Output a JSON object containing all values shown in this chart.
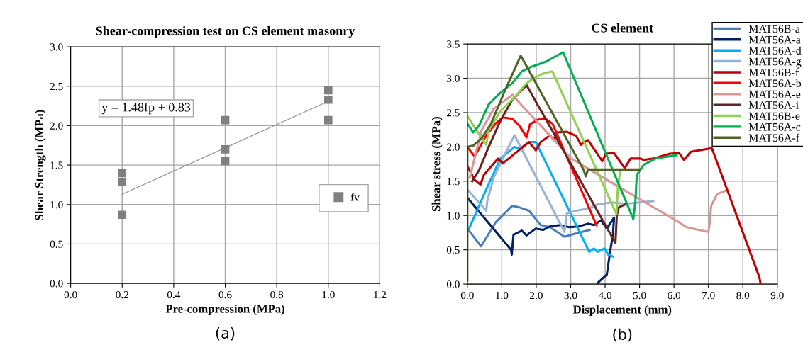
{
  "chart_data": [
    {
      "type": "scatter",
      "title": "Shear-compression test on CS element masonry",
      "xlabel": "Pre-compression (MPa)",
      "ylabel": "Shear Strength (MPa)",
      "xlim": [
        0,
        1.2
      ],
      "xticks": [
        {
          "value": 0,
          "label": "0.0"
        },
        {
          "value": 0.2,
          "label": "0.2"
        },
        {
          "value": 0.4,
          "label": "0.4"
        },
        {
          "value": 0.6,
          "label": "0.6"
        },
        {
          "value": 0.8,
          "label": "0.8"
        },
        {
          "value": 1.0,
          "label": "1.0"
        },
        {
          "value": 1.2,
          "label": "1.2"
        }
      ],
      "ylim": [
        0,
        3
      ],
      "yticks": [
        {
          "value": 0,
          "label": "0.0"
        },
        {
          "value": 0.5,
          "label": "0.5"
        },
        {
          "value": 1.0,
          "label": "1.0"
        },
        {
          "value": 1.5,
          "label": "1.5"
        },
        {
          "value": 2.0,
          "label": "2.0"
        },
        {
          "value": 2.5,
          "label": "2.5"
        },
        {
          "value": 3.0,
          "label": "3.0"
        }
      ],
      "grid": true,
      "legend": "right",
      "annotations": [
        "y = 1.48fp + 0.83",
        "(a)"
      ],
      "series": [
        {
          "name": "fv",
          "color": "#808080",
          "marker": "square",
          "x": [
            0.2,
            0.2,
            0.2,
            0.6,
            0.6,
            0.6,
            1.0,
            1.0,
            1.0
          ],
          "values": [
            1.4,
            1.29,
            0.87,
            2.07,
            1.7,
            1.55,
            2.45,
            2.33,
            2.07
          ]
        },
        {
          "type": "line",
          "color": "#8c8c8c",
          "marker": "none",
          "x": [
            0.2,
            1.0
          ],
          "values": [
            1.13,
            2.31
          ]
        }
      ]
    },
    {
      "type": "line",
      "title": "CS element",
      "xlabel": "Displacement (mm)",
      "ylabel": "Shear stress (MPa)",
      "xlim": [
        0,
        9
      ],
      "xticks": [
        {
          "value": 0,
          "label": "0.0"
        },
        {
          "value": 1,
          "label": "1.0"
        },
        {
          "value": 2,
          "label": "2.0"
        },
        {
          "value": 3,
          "label": "3.0"
        },
        {
          "value": 4,
          "label": "4.0"
        },
        {
          "value": 5,
          "label": "5.0"
        },
        {
          "value": 6,
          "label": "6.0"
        },
        {
          "value": 7,
          "label": "7.0"
        },
        {
          "value": 8,
          "label": "8.0"
        },
        {
          "value": 9,
          "label": "9.0"
        }
      ],
      "ylim": [
        0,
        3.5
      ],
      "yticks": [
        {
          "value": 0,
          "label": "0.0"
        },
        {
          "value": 0.5,
          "label": "0.5"
        },
        {
          "value": 1.0,
          "label": "1.0"
        },
        {
          "value": 1.5,
          "label": "1.5"
        },
        {
          "value": 2.0,
          "label": "2.0"
        },
        {
          "value": 2.5,
          "label": "2.5"
        },
        {
          "value": 3.0,
          "label": "3.0"
        },
        {
          "value": 3.5,
          "label": "3.5"
        }
      ],
      "grid": true,
      "legend": "top right",
      "annotations": [
        "(b)"
      ],
      "series": [
        {
          "name": "MAT56B-a",
          "color": "#4a7ebb",
          "x": [
            0,
            0.4,
            0.82,
            1.3,
            1.5,
            1.79,
            2.13,
            2.4,
            2.82,
            3.16,
            3.55
          ],
          "values": [
            0.81,
            0.55,
            0.9,
            1.14,
            1.12,
            1.07,
            0.86,
            0.83,
            0.69,
            0.74,
            0.79
          ]
        },
        {
          "name": "MAT56A-a",
          "color": "#002060",
          "x": [
            0,
            1.27,
            1.29,
            1.34,
            1.58,
            1.72,
            1.99,
            2.2,
            2.4,
            2.68,
            2.96,
            3.23,
            3.5,
            3.68,
            3.88,
            4.05,
            4.26,
            4.23,
            4.14,
            4.05,
            3.79
          ],
          "values": [
            1.26,
            0.5,
            0.43,
            0.72,
            0.78,
            0.71,
            0.81,
            0.79,
            0.84,
            0.86,
            0.83,
            0.84,
            0.88,
            0.86,
            0.93,
            0.81,
            0.97,
            0.74,
            0.45,
            0.14,
            0.02
          ]
        },
        {
          "name": "MAT56A-d",
          "color": "#00b0f0",
          "x": [
            0.05,
            0.55,
            0.96,
            1.37,
            1.51,
            1.79,
            1.99,
            3.54,
            3.68,
            3.78,
            3.99,
            4.09,
            4.23
          ],
          "values": [
            0.81,
            1.38,
            1.83,
            2.0,
            1.97,
            2.07,
            2.07,
            0.47,
            0.52,
            0.47,
            0.52,
            0.43,
            0.4
          ]
        },
        {
          "name": "MAT56A-g",
          "color": "#95b3d7",
          "x": [
            0,
            0.55,
            0.58,
            0.76,
            1.03,
            1.37,
            2.82,
            2.89,
            3.16,
            3.5,
            3.78,
            4.19,
            4.6,
            5.02,
            5.4
          ],
          "values": [
            1.38,
            1.07,
            1.21,
            1.55,
            1.83,
            2.17,
            0.76,
            1.03,
            1.07,
            1.1,
            1.16,
            1.19,
            1.17,
            1.19,
            1.21
          ]
        },
        {
          "name": "MAT56B-f",
          "color": "#c00000",
          "x": [
            0,
            0.21,
            0.38,
            0.48,
            0.89,
            1.03,
            1.37,
            1.79,
            1.99,
            2.13,
            2.4,
            2.51,
            2.61,
            2.89,
            3.16,
            3.3,
            3.5,
            3.92,
            4.02,
            4.26,
            4.57,
            4.74,
            5.02,
            5.12,
            5.4,
            5.88,
            6.15,
            6.29,
            6.49,
            6.97,
            7.1,
            8.48,
            8.51
          ],
          "values": [
            1.72,
            1.52,
            1.45,
            1.59,
            1.83,
            1.76,
            1.9,
            2.07,
            1.95,
            2.07,
            2.17,
            2.1,
            2.21,
            2.22,
            2.16,
            2.03,
            2.1,
            1.79,
            1.9,
            1.91,
            1.69,
            1.83,
            1.83,
            1.81,
            1.83,
            1.9,
            1.91,
            1.81,
            1.93,
            1.97,
            1.98,
            0.1,
            0.02
          ]
        },
        {
          "name": "MAT56A-b",
          "color": "#ff0000",
          "x": [
            0,
            0.21,
            0.55,
            0.82,
            1.03,
            1.31,
            1.51,
            1.72,
            1.82,
            2.06,
            2.27,
            2.47,
            3.75
          ],
          "values": [
            2.0,
            1.86,
            2.17,
            2.34,
            2.43,
            2.41,
            2.31,
            2.14,
            2.33,
            2.4,
            2.41,
            2.34,
            0.86
          ]
        },
        {
          "name": "MAT56A-e",
          "color": "#d99694",
          "x": [
            0.07,
            0.41,
            0.76,
            1.31,
            1.48,
            3.02,
            4.05,
            6.12,
            6.36,
            7.0,
            7.04,
            7.08,
            7.25,
            7.49
          ],
          "values": [
            1.55,
            2.24,
            2.55,
            2.76,
            2.66,
            1.83,
            1.52,
            0.91,
            0.83,
            0.76,
            0.9,
            1.14,
            1.31,
            1.36
          ]
        },
        {
          "name": "MAT56A-i",
          "color": "#632523",
          "x": [
            0.14,
            0.34,
            0.62,
            0.96,
            1.31,
            1.72,
            4.3,
            4.34,
            4.4,
            4.58
          ],
          "values": [
            1.5,
            1.66,
            2.0,
            2.38,
            2.69,
            2.9,
            0.6,
            1.0,
            1.12,
            1.16
          ]
        },
        {
          "name": "MAT56B-e",
          "color": "#92d050",
          "x": [
            0,
            0.27,
            0.55,
            0.62,
            0.96,
            1.44,
            1.68,
            1.92,
            2.2,
            2.47,
            4.33,
            4.37,
            4.44
          ],
          "values": [
            2.45,
            2.24,
            2.03,
            2.24,
            2.52,
            2.76,
            2.91,
            3.0,
            3.07,
            3.1,
            1.02,
            1.41,
            1.64
          ]
        },
        {
          "name": "MAT56A-c",
          "color": "#00b050",
          "x": [
            0,
            0.17,
            0.34,
            0.62,
            0.96,
            1.31,
            1.58,
            1.86,
            2.27,
            2.78,
            4.82,
            4.88,
            4.92,
            5.12,
            5.47,
            6.08
          ],
          "values": [
            2.34,
            2.21,
            2.31,
            2.62,
            2.79,
            2.93,
            3.1,
            3.17,
            3.24,
            3.38,
            0.95,
            1.21,
            1.59,
            1.74,
            1.83,
            1.88
          ]
        },
        {
          "name": "MAT56A-f",
          "color": "#4f6228",
          "x": [
            0,
            0,
            0.17,
            0.41,
            0.69,
            1.1,
            1.55,
            3.37,
            3.44,
            3.5,
            4.05,
            5.0
          ],
          "values": [
            0.05,
            2.0,
            2.02,
            2.12,
            2.34,
            2.83,
            3.33,
            1.67,
            1.57,
            1.67,
            1.67,
            1.67
          ]
        }
      ]
    }
  ]
}
